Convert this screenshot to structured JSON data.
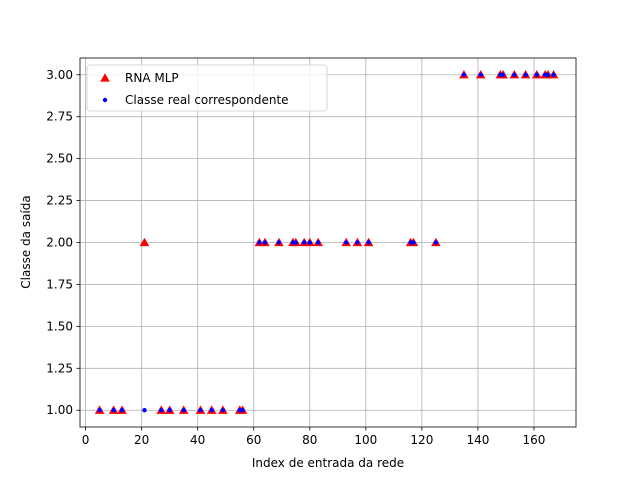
{
  "chart_data": {
    "type": "scatter",
    "xlabel": "Index de entrada da rede",
    "ylabel": "Classe da saída",
    "xlim": [
      -2,
      175
    ],
    "ylim": [
      0.9,
      3.1
    ],
    "x_ticks": [
      0,
      20,
      40,
      60,
      80,
      100,
      120,
      140,
      160
    ],
    "y_ticks": [
      1.0,
      1.25,
      1.5,
      1.75,
      2.0,
      2.25,
      2.5,
      2.75,
      3.0
    ],
    "y_tick_labels": [
      "1.00",
      "1.25",
      "1.50",
      "1.75",
      "2.00",
      "2.25",
      "2.50",
      "2.75",
      "3.00"
    ],
    "grid": true,
    "legend_position": "upper-left",
    "series": [
      {
        "name": "RNA MLP",
        "marker": "triangle",
        "color": "#ff0000",
        "x": [
          5,
          10,
          13,
          21,
          27,
          30,
          35,
          41,
          45,
          49,
          55,
          56,
          62,
          64,
          69,
          74,
          75,
          78,
          80,
          83,
          93,
          97,
          101,
          116,
          117,
          125,
          135,
          141,
          148,
          149,
          153,
          157,
          161,
          164,
          165,
          167
        ],
        "y": [
          1,
          1,
          1,
          2,
          1,
          1,
          1,
          1,
          1,
          1,
          1,
          1,
          2,
          2,
          2,
          2,
          2,
          2,
          2,
          2,
          2,
          2,
          2,
          2,
          2,
          2,
          3,
          3,
          3,
          3,
          3,
          3,
          3,
          3,
          3,
          3
        ]
      },
      {
        "name": "Classe real correspondente",
        "marker": "dot",
        "color": "#0000ff",
        "x": [
          5,
          10,
          13,
          21,
          27,
          30,
          35,
          41,
          45,
          49,
          55,
          56,
          62,
          64,
          69,
          74,
          75,
          78,
          80,
          83,
          93,
          97,
          101,
          116,
          117,
          125,
          135,
          141,
          148,
          149,
          153,
          157,
          161,
          164,
          165,
          167
        ],
        "y": [
          1,
          1,
          1,
          1,
          1,
          1,
          1,
          1,
          1,
          1,
          1,
          1,
          2,
          2,
          2,
          2,
          2,
          2,
          2,
          2,
          2,
          2,
          2,
          2,
          2,
          2,
          3,
          3,
          3,
          3,
          3,
          3,
          3,
          3,
          3,
          3
        ]
      }
    ]
  }
}
